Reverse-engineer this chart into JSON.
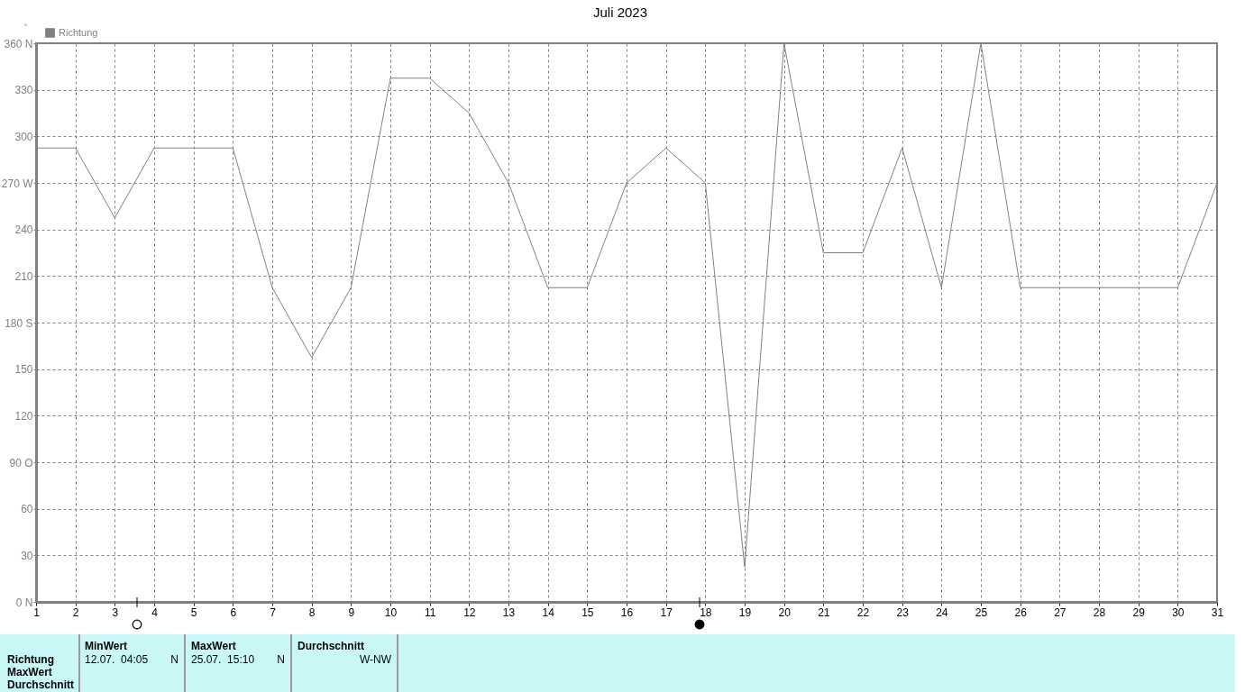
{
  "chart_data": {
    "type": "line",
    "title": "Juli 2023",
    "ylabel": "°",
    "x": [
      1,
      2,
      3,
      4,
      5,
      6,
      7,
      8,
      9,
      10,
      11,
      12,
      13,
      14,
      15,
      16,
      17,
      18,
      19,
      20,
      21,
      22,
      23,
      24,
      25,
      26,
      27,
      28,
      29,
      30,
      31
    ],
    "series": [
      {
        "name": "Richtung",
        "color": "#808080",
        "values": [
          292.5,
          292.5,
          247.5,
          292.5,
          292.5,
          292.5,
          202.5,
          157.5,
          202.5,
          337.5,
          337.5,
          315,
          270,
          202.5,
          202.5,
          270,
          292.5,
          270,
          22.5,
          360,
          225,
          225,
          292.5,
          202.5,
          360,
          202.5,
          202.5,
          202.5,
          202.5,
          202.5,
          270
        ]
      }
    ],
    "xlim": [
      1,
      31
    ],
    "xticks": [
      1,
      2,
      3,
      4,
      5,
      6,
      7,
      8,
      9,
      10,
      11,
      12,
      13,
      14,
      15,
      16,
      17,
      18,
      19,
      20,
      21,
      22,
      23,
      24,
      25,
      26,
      27,
      28,
      29,
      30,
      31
    ],
    "ylim": [
      0,
      360
    ],
    "yticks": [
      {
        "value": 0,
        "label": "0 N"
      },
      30,
      60,
      {
        "value": 90,
        "label": "90 O"
      },
      120,
      150,
      {
        "value": 180,
        "label": "180 S"
      },
      210,
      240,
      {
        "value": 270,
        "label": "270 W"
      },
      300,
      330,
      {
        "value": 360,
        "label": "360 N"
      }
    ],
    "grid": true,
    "legend": "top left",
    "annotations": [
      "Richtung",
      "MaxWert",
      "Durchschnitt",
      "MinWert",
      "12.07.  04:05",
      "N",
      "MaxWert",
      "25.07.  15:10",
      "N",
      "Durchschnitt",
      "W-NW"
    ]
  }
}
